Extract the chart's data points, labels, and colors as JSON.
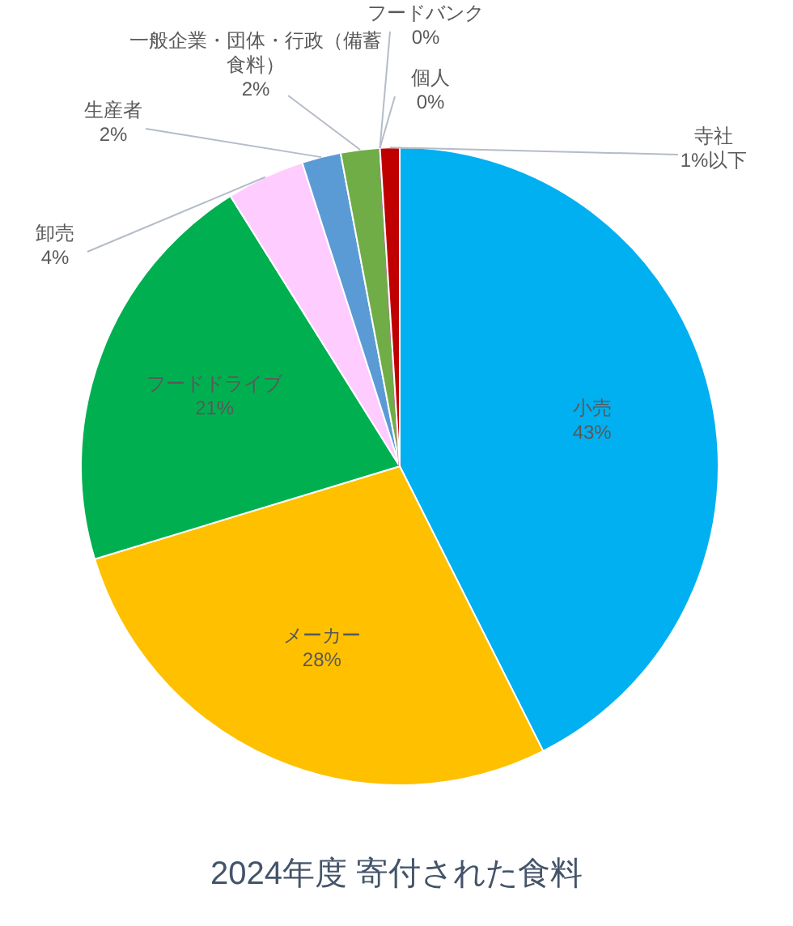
{
  "chart_data": {
    "type": "pie",
    "title": "2024年度 寄付された食料",
    "categories": [
      "小売",
      "メーカー",
      "フードドライブ",
      "卸売",
      "生産者",
      "一般企業・団体・行政（備蓄食料）",
      "フードバンク",
      "個人",
      "寺社"
    ],
    "values": [
      43,
      28,
      21,
      4,
      2,
      2,
      0,
      0,
      1
    ],
    "value_labels": [
      "43%",
      "28%",
      "21%",
      "4%",
      "2%",
      "2%",
      "0%",
      "0%",
      "1%以下"
    ],
    "colors": [
      "#00b0f0",
      "#ffc000",
      "#00b050",
      "#ffccff",
      "#5b9bd5",
      "#70ad47",
      "#3f3f7f",
      "#ff99cc",
      "#c00000"
    ]
  }
}
